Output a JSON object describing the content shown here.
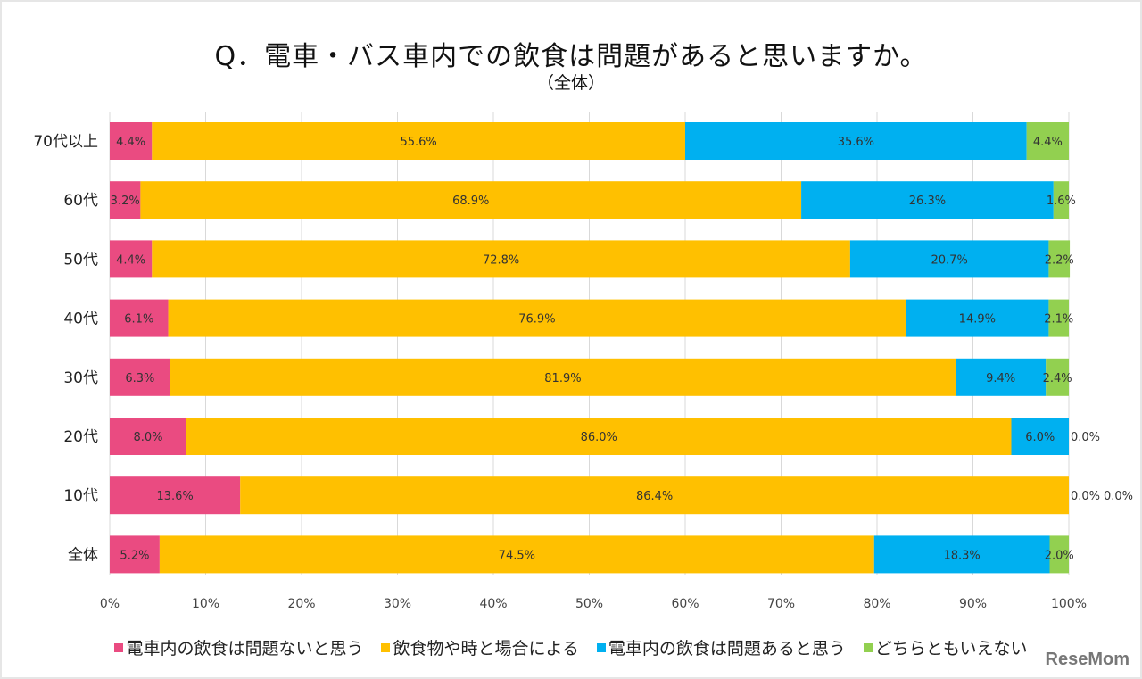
{
  "chart_data": {
    "type": "bar",
    "orientation": "horizontal",
    "stacked": true,
    "title": "Q．電車・バス車内での飲食は問題があると思いますか。",
    "subtitle": "（全体）",
    "categories": [
      "70代以上",
      "60代",
      "50代",
      "40代",
      "30代",
      "20代",
      "10代",
      "全体"
    ],
    "series": [
      {
        "name": "電車内の飲食は問題ないと思う",
        "color": "#ea4b81",
        "values": [
          4.4,
          3.2,
          4.4,
          6.1,
          6.3,
          8.0,
          13.6,
          5.2
        ]
      },
      {
        "name": "飲食物や時と場合による",
        "color": "#ffc000",
        "values": [
          55.6,
          68.9,
          72.8,
          76.9,
          81.9,
          86.0,
          86.4,
          74.5
        ]
      },
      {
        "name": "電車内の飲食は問題あると思う",
        "color": "#00b0f0",
        "values": [
          35.6,
          26.3,
          20.7,
          14.9,
          9.4,
          6.0,
          0.0,
          18.3
        ]
      },
      {
        "name": "どちらともいえない",
        "color": "#92d050",
        "values": [
          4.4,
          1.6,
          2.2,
          2.1,
          2.4,
          0.0,
          0.0,
          2.0
        ]
      }
    ],
    "xlim": [
      0,
      100
    ],
    "xticks": [
      "0%",
      "10%",
      "20%",
      "30%",
      "40%",
      "50%",
      "60%",
      "70%",
      "80%",
      "90%",
      "100%"
    ],
    "grid": true,
    "legend": "bottom"
  },
  "logo": "ReseMom"
}
